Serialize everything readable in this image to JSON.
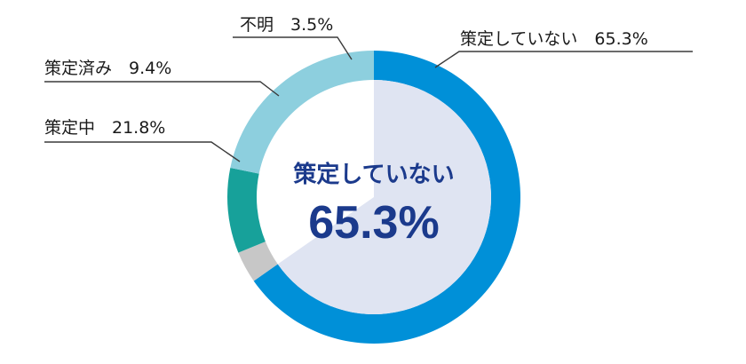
{
  "chart_data": {
    "type": "pie",
    "title": "",
    "categories": [
      "策定していない",
      "不明",
      "策定済み",
      "策定中"
    ],
    "values": [
      65.3,
      3.5,
      9.4,
      21.8
    ],
    "unit": "%",
    "labels": [
      "策定していない　65.3%",
      "不明　3.5%",
      "策定済み　9.4%",
      "策定中　21.8%"
    ],
    "colors": [
      "#0090d8",
      "#c7c7c7",
      "#17a19a",
      "#8dcfde"
    ],
    "highlight_fill": "#dfe4f2",
    "center_text": {
      "caption": "策定していない",
      "value": "65.3%"
    },
    "start_angle": "12 o'clock",
    "direction": "clockwise",
    "legend": "none"
  }
}
